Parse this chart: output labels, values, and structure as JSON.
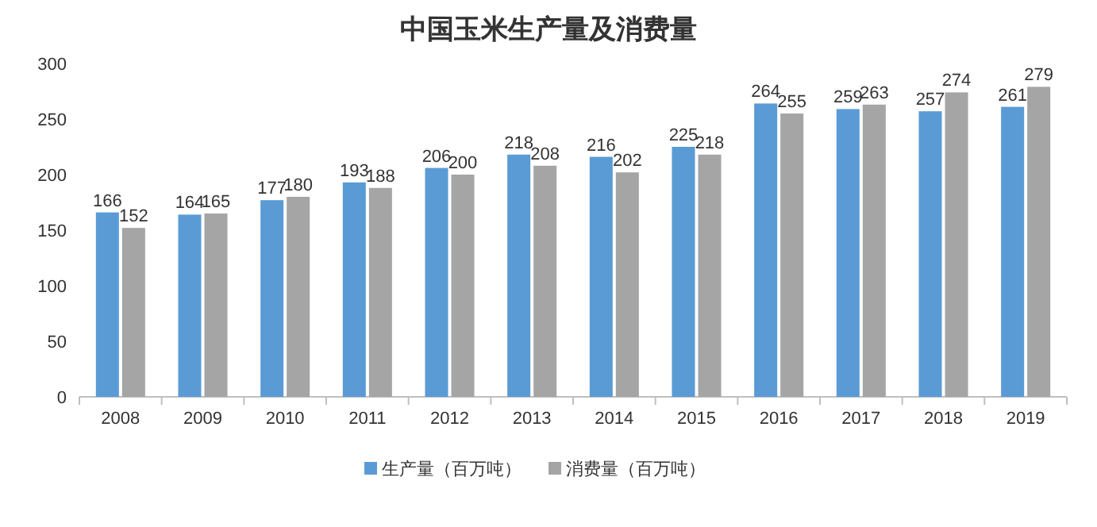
{
  "chart_data": {
    "type": "bar",
    "title": "中国玉米生产量及消费量",
    "categories": [
      "2008",
      "2009",
      "2010",
      "2011",
      "2012",
      "2013",
      "2014",
      "2015",
      "2016",
      "2017",
      "2018",
      "2019"
    ],
    "series": [
      {
        "name": "生产量（百万吨）",
        "color": "#5b9bd5",
        "values": [
          166,
          164,
          177,
          193,
          206,
          218,
          216,
          225,
          264,
          259,
          257,
          261
        ]
      },
      {
        "name": "消费量（百万吨）",
        "color": "#a5a5a5",
        "values": [
          152,
          165,
          180,
          188,
          200,
          208,
          202,
          218,
          255,
          263,
          274,
          279
        ]
      }
    ],
    "ylim": [
      0,
      300
    ],
    "yticks": [
      0,
      50,
      100,
      150,
      200,
      250,
      300
    ],
    "grid": false,
    "legend": "bottom",
    "data_labels": true
  }
}
